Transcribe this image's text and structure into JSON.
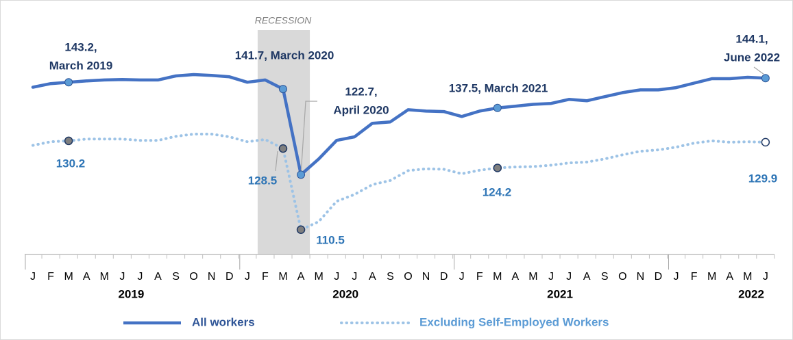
{
  "chart_data": {
    "type": "line",
    "categories": [
      "J",
      "F",
      "M",
      "A",
      "M",
      "J",
      "J",
      "A",
      "S",
      "O",
      "N",
      "D",
      "J",
      "F",
      "M",
      "A",
      "M",
      "J",
      "J",
      "A",
      "S",
      "O",
      "N",
      "D",
      "J",
      "F",
      "M",
      "A",
      "M",
      "J",
      "J",
      "A",
      "S",
      "O",
      "N",
      "D",
      "J",
      "F",
      "M",
      "A",
      "M",
      "J"
    ],
    "years": [
      "2019",
      "2020",
      "2021",
      "2022"
    ],
    "series": [
      {
        "name": "All workers",
        "color": "#4472c4",
        "values": [
          142.1,
          142.9,
          143.2,
          143.5,
          143.7,
          143.8,
          143.7,
          143.7,
          144.6,
          144.9,
          144.7,
          144.4,
          143.2,
          143.7,
          141.7,
          122.7,
          126.2,
          130.3,
          131.1,
          134.1,
          134.4,
          137.1,
          136.8,
          136.7,
          135.6,
          136.8,
          137.5,
          137.9,
          138.3,
          138.5,
          139.4,
          139.1,
          140.0,
          140.9,
          141.5,
          141.5,
          142.0,
          143.0,
          144.0,
          144.0,
          144.3,
          144.1
        ]
      },
      {
        "name": "Excluding Self-Employed Workers",
        "color": "#9dc3e6",
        "values": [
          129.2,
          130.0,
          130.2,
          130.6,
          130.6,
          130.6,
          130.3,
          130.3,
          131.2,
          131.7,
          131.7,
          131.1,
          130.0,
          130.5,
          128.5,
          110.5,
          112.3,
          116.8,
          118.3,
          120.5,
          121.4,
          123.6,
          124.0,
          123.9,
          122.9,
          123.7,
          124.2,
          124.4,
          124.5,
          124.8,
          125.3,
          125.5,
          126.2,
          127.1,
          127.9,
          128.2,
          128.8,
          129.7,
          130.2,
          129.9,
          130.0,
          129.9
        ]
      }
    ],
    "ylim": [
      105,
      160
    ],
    "recession": "RECESSION",
    "annotations": [
      {
        "text": [
          "143.2,",
          "March 2019"
        ]
      },
      {
        "text": [
          "141.7, March 2020"
        ]
      },
      {
        "text": [
          "122.7,",
          "April 2020"
        ]
      },
      {
        "text": [
          "137.5, March 2021"
        ]
      },
      {
        "text": [
          "144.1,",
          "June 2022"
        ]
      },
      {
        "text": [
          "130.2"
        ]
      },
      {
        "text": [
          "128.5"
        ]
      },
      {
        "text": [
          "110.5"
        ]
      },
      {
        "text": [
          "124.2"
        ]
      },
      {
        "text": [
          "129.9"
        ]
      }
    ]
  }
}
